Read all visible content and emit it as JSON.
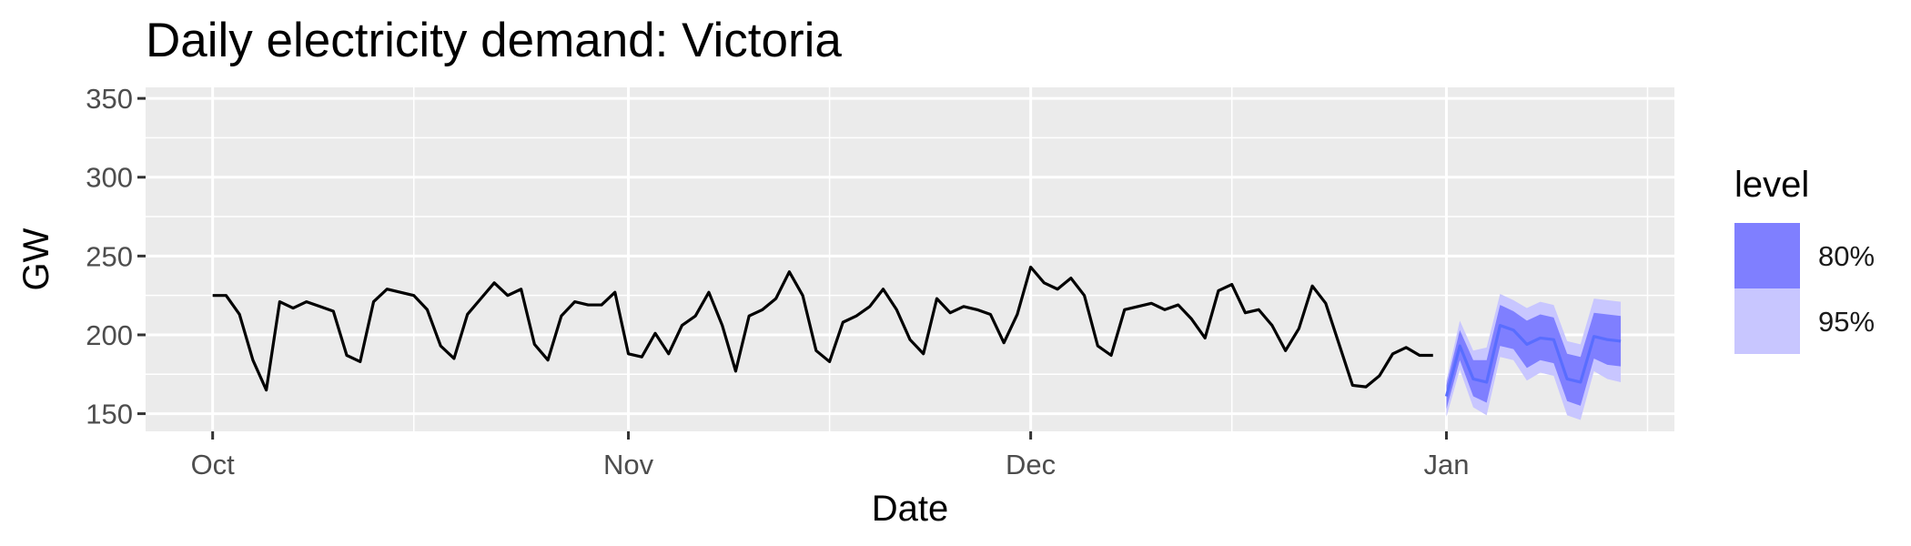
{
  "chart_data": {
    "type": "line",
    "title": "Daily electricity demand: Victoria",
    "xlabel": "Date",
    "ylabel": "GW",
    "ylim": [
      138.8,
      357
    ],
    "xlim": [
      "2014-09-26",
      "2015-01-18"
    ],
    "x_ticks": [
      {
        "date": "2014-10-01",
        "label": "Oct"
      },
      {
        "date": "2014-11-01",
        "label": "Nov"
      },
      {
        "date": "2014-12-01",
        "label": "Dec"
      },
      {
        "date": "2015-01-01",
        "label": "Jan"
      }
    ],
    "x_minor_ticks": [
      "2014-10-16",
      "2014-11-16",
      "2014-12-16",
      "2015-01-16"
    ],
    "y_ticks": [
      150,
      200,
      250,
      300,
      350
    ],
    "grid": true,
    "series": [
      {
        "color": "#000000",
        "start": "2014-10-01",
        "values": [
          225,
          225,
          213,
          184,
          165,
          221,
          217,
          221,
          218,
          215,
          187,
          183,
          221,
          229,
          227,
          225,
          216,
          193,
          185,
          213,
          223,
          233,
          225,
          229,
          194,
          184,
          212,
          221,
          219,
          219,
          227,
          188,
          186,
          201,
          188,
          206,
          212,
          227,
          206,
          177,
          212,
          216,
          223,
          240,
          225,
          190,
          183,
          208,
          212,
          218,
          229,
          216,
          197,
          188,
          223,
          214,
          218,
          216,
          213,
          195,
          213,
          243,
          233,
          229,
          236,
          225,
          193,
          187,
          216,
          218,
          220,
          216,
          219,
          210,
          198,
          228,
          232,
          214,
          216,
          206,
          190,
          204,
          231,
          220,
          194,
          168,
          167,
          174,
          188,
          192,
          187,
          187
        ]
      }
    ],
    "forecast": {
      "color": "#596dff",
      "start": "2015-01-01",
      "mean": [
        161,
        193,
        172,
        170,
        206,
        203,
        194,
        198,
        197,
        172,
        170,
        199,
        197,
        196
      ],
      "intervals": [
        {
          "level": "95%",
          "color": "#c8c6ff",
          "lower": [
            148,
            178,
            154,
            149,
            186,
            184,
            171,
            176,
            174,
            149,
            146,
            177,
            172,
            170
          ],
          "upper": [
            171,
            209,
            190,
            192,
            226,
            222,
            217,
            221,
            219,
            196,
            194,
            223,
            222,
            221
          ]
        },
        {
          "level": "80%",
          "color": "#7f7fff",
          "lower": [
            153,
            184,
            161,
            157,
            193,
            191,
            179,
            184,
            182,
            158,
            155,
            185,
            181,
            180
          ],
          "upper": [
            168,
            203,
            184,
            184,
            219,
            215,
            209,
            213,
            211,
            188,
            186,
            214,
            213,
            212
          ]
        }
      ]
    },
    "legend": {
      "title": "level",
      "position": "right",
      "items": [
        {
          "label": "80%",
          "color": "#7f7fff"
        },
        {
          "label": "95%",
          "color": "#c8c6ff"
        }
      ]
    }
  }
}
